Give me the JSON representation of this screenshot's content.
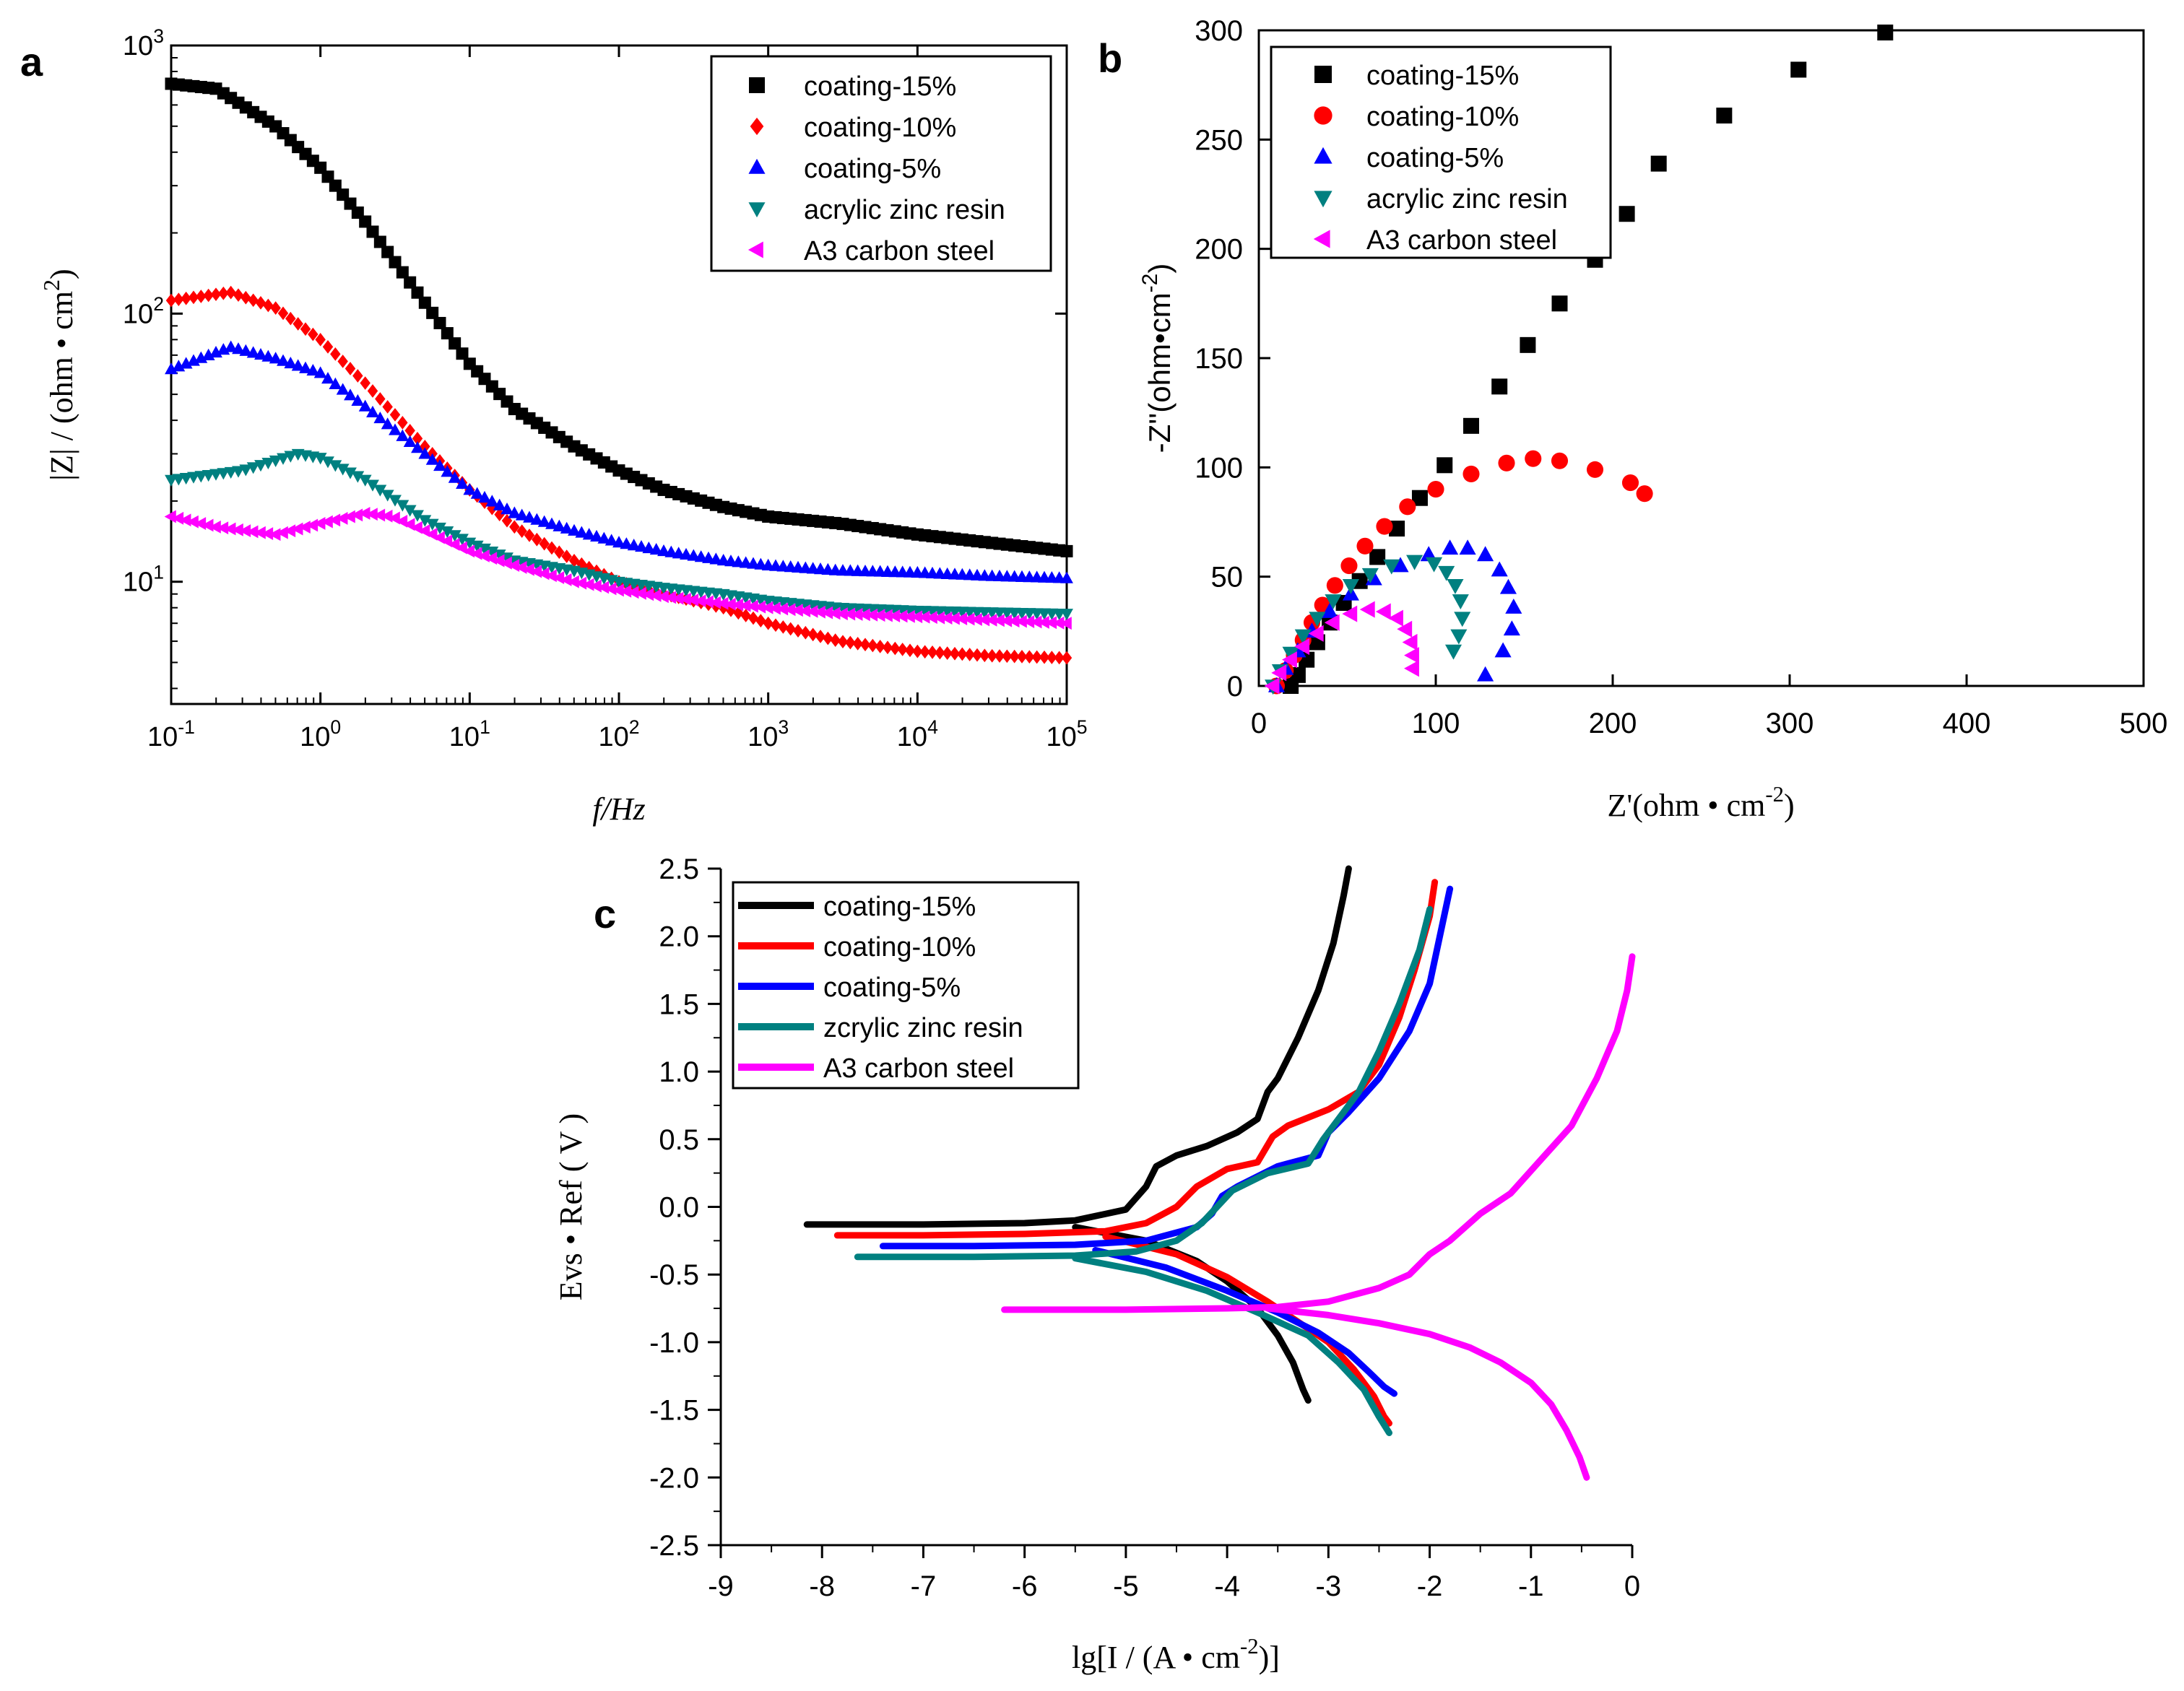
{
  "panels": {
    "a": {
      "label": "a"
    },
    "b": {
      "label": "b"
    },
    "c": {
      "label": "c"
    }
  },
  "chart_data": [
    {
      "id": "a",
      "type": "scatter",
      "title": "",
      "xlabel": "f/Hz",
      "ylabel": "|Z| / (ohm • cm^2)",
      "x_scale": "log",
      "y_scale": "log",
      "xlim": [
        0.1,
        100000
      ],
      "ylim": [
        3.5,
        1000
      ],
      "x_ticks": [
        0.1,
        1,
        10,
        100,
        1000,
        10000,
        100000
      ],
      "x_tick_labels": [
        "10^-1",
        "10^0",
        "10^1",
        "10^2",
        "10^3",
        "10^4",
        "10^5"
      ],
      "y_ticks": [
        10,
        100,
        1000
      ],
      "y_tick_labels": [
        "10^1",
        "10^2",
        "10^3"
      ],
      "grid": false,
      "legend_position": "top-right",
      "series": [
        {
          "name": "coating-15%",
          "marker": "square",
          "color": "#000000",
          "x": [
            0.1,
            0.2,
            0.5,
            1,
            2,
            5,
            10,
            20,
            50,
            100,
            200,
            500,
            1000,
            3000,
            10000,
            30000,
            100000
          ],
          "y": [
            720,
            690,
            500,
            350,
            220,
            110,
            65,
            44,
            32,
            26,
            22,
            19,
            17.5,
            16.5,
            15,
            14,
            13
          ]
        },
        {
          "name": "coating-10%",
          "marker": "diamond",
          "color": "#ff0000",
          "x": [
            0.1,
            0.25,
            0.5,
            1,
            2,
            5,
            10,
            20,
            50,
            100,
            200,
            500,
            1000,
            3000,
            10000,
            30000,
            100000
          ],
          "y": [
            112,
            120,
            105,
            80,
            55,
            32,
            22,
            16,
            12,
            10,
            9,
            8,
            7,
            6,
            5.5,
            5.3,
            5.2
          ]
        },
        {
          "name": "coating-5%",
          "marker": "triangle-up",
          "color": "#0000ff",
          "x": [
            0.1,
            0.25,
            0.5,
            1,
            2,
            5,
            10,
            20,
            50,
            100,
            200,
            500,
            1000,
            3000,
            10000,
            30000,
            100000
          ],
          "y": [
            62,
            75,
            68,
            60,
            45,
            30,
            22,
            18,
            15.5,
            14,
            13,
            12,
            11.5,
            11,
            10.8,
            10.5,
            10.3
          ]
        },
        {
          "name": "acrylic zinc resin",
          "marker": "triangle-down",
          "color": "#008080",
          "x": [
            0.1,
            0.3,
            0.7,
            1,
            2,
            5,
            10,
            20,
            50,
            100,
            200,
            500,
            1000,
            3000,
            10000,
            30000,
            100000
          ],
          "y": [
            24,
            26,
            30,
            29,
            24,
            17,
            14,
            12,
            11,
            10,
            9.5,
            9,
            8.5,
            8,
            7.8,
            7.7,
            7.6
          ]
        },
        {
          "name": "A3 carbon steel",
          "marker": "triangle-left",
          "color": "#ff00ff",
          "x": [
            0.1,
            0.2,
            0.5,
            1,
            2,
            3,
            5,
            10,
            20,
            50,
            100,
            200,
            500,
            1000,
            3000,
            10000,
            30000,
            100000
          ],
          "y": [
            17.5,
            16,
            15,
            16.5,
            18,
            17.5,
            15.5,
            13,
            11.5,
            10,
            9.3,
            8.8,
            8.3,
            8,
            7.6,
            7.4,
            7.2,
            7
          ]
        }
      ]
    },
    {
      "id": "b",
      "type": "scatter",
      "title": "",
      "xlabel": "Z'(ohm • cm^-2)",
      "ylabel": "-Z''(ohm•cm^-2)",
      "xlim": [
        0,
        500
      ],
      "ylim": [
        0,
        300
      ],
      "x_ticks": [
        0,
        100,
        200,
        300,
        400,
        500
      ],
      "y_ticks": [
        0,
        50,
        100,
        150,
        200,
        250,
        300
      ],
      "grid": false,
      "legend_position": "top-left",
      "series": [
        {
          "name": "coating-15%",
          "marker": "square",
          "color": "#000000",
          "x": [
            18,
            22,
            27,
            33,
            40,
            48,
            57,
            67,
            78,
            91,
            105,
            120,
            136,
            152,
            170,
            190,
            208,
            226,
            263,
            305,
            354
          ],
          "y": [
            0,
            5,
            12,
            20,
            29,
            38,
            48,
            59,
            72,
            86,
            101,
            119,
            137,
            156,
            175,
            195,
            216,
            239,
            261,
            282,
            299
          ]
        },
        {
          "name": "coating-10%",
          "marker": "circle",
          "color": "#ff0000",
          "x": [
            10,
            15,
            20,
            25,
            30,
            36,
            43,
            51,
            60,
            71,
            84,
            100,
            120,
            140,
            155,
            170,
            190,
            210,
            218
          ],
          "y": [
            0,
            7,
            14,
            21,
            29,
            37,
            46,
            55,
            64,
            73,
            82,
            90,
            97,
            102,
            104,
            103,
            99,
            93,
            88
          ]
        },
        {
          "name": "coating-5%",
          "marker": "triangle-up",
          "color": "#0000ff",
          "x": [
            10,
            15,
            22,
            30,
            40,
            52,
            65,
            80,
            96,
            108,
            118,
            128,
            136,
            141,
            144,
            143,
            138,
            128
          ],
          "y": [
            0,
            8,
            16,
            25,
            34,
            42,
            49,
            55,
            60,
            63,
            63,
            60,
            53,
            45,
            36,
            26,
            16,
            5
          ]
        },
        {
          "name": "acrylic zinc resin",
          "marker": "triangle-down",
          "color": "#008080",
          "x": [
            8,
            12,
            18,
            25,
            33,
            42,
            52,
            63,
            75,
            88,
            99,
            106,
            111,
            114,
            115,
            113,
            110
          ],
          "y": [
            0,
            7,
            15,
            23,
            31,
            39,
            46,
            51,
            55,
            57,
            56,
            52,
            46,
            39,
            31,
            23,
            16
          ]
        },
        {
          "name": "A3 carbon steel",
          "marker": "triangle-left",
          "color": "#ff00ff",
          "x": [
            8,
            12,
            18,
            25,
            33,
            42,
            52,
            62,
            71,
            78,
            83,
            86,
            87,
            87
          ],
          "y": [
            0,
            6,
            12,
            18,
            24,
            29,
            33,
            35,
            34,
            31,
            26,
            20,
            14,
            8
          ]
        }
      ]
    },
    {
      "id": "c",
      "type": "line",
      "title": "",
      "xlabel": "lg[I / (A • cm^-2)]",
      "ylabel": "Evs • Ref ( V )",
      "xlim": [
        -9,
        0
      ],
      "ylim": [
        -2.5,
        2.5
      ],
      "x_ticks": [
        -9,
        -8,
        -7,
        -6,
        -5,
        -4,
        -3,
        -2,
        -1,
        0
      ],
      "y_ticks": [
        -2.5,
        -2.0,
        -1.5,
        -1.0,
        -0.5,
        0.0,
        0.5,
        1.0,
        1.5,
        2.0,
        2.5
      ],
      "y_tick_labels": [
        "-2.5",
        "-2.0",
        "-1.5",
        "-1.0",
        "-0.5",
        "0.0",
        "0.5",
        "1.0",
        "1.5",
        "2.0",
        "2.5"
      ],
      "grid": false,
      "legend_position": "top-left",
      "series": [
        {
          "name": "coating-15%",
          "color": "#000000",
          "x": [
            -8.15,
            -7.0,
            -6.0,
            -5.5,
            -5.0,
            -4.8,
            -4.7,
            -4.5,
            -4.2,
            -3.9,
            -3.7,
            -3.6,
            -3.5,
            -3.3,
            -3.1,
            -2.95,
            -2.85,
            -2.8
          ],
          "y": [
            -0.13,
            -0.13,
            -0.12,
            -0.1,
            -0.02,
            0.15,
            0.3,
            0.38,
            0.45,
            0.55,
            0.65,
            0.85,
            0.95,
            1.25,
            1.6,
            1.95,
            2.3,
            2.5
          ],
          "cathodic_x": [
            -5.5,
            -4.8,
            -4.3,
            -4.0,
            -3.7,
            -3.5,
            -3.35,
            -3.25,
            -3.2
          ],
          "cathodic_y": [
            -0.15,
            -0.25,
            -0.4,
            -0.55,
            -0.75,
            -0.95,
            -1.15,
            -1.35,
            -1.43
          ]
        },
        {
          "name": "coating-10%",
          "color": "#ff0000",
          "x": [
            -7.85,
            -7.0,
            -6.0,
            -5.2,
            -4.8,
            -4.5,
            -4.3,
            -4.0,
            -3.7,
            -3.55,
            -3.4,
            -3.0,
            -2.7,
            -2.5,
            -2.3,
            -2.15,
            -2.0,
            -1.95
          ],
          "y": [
            -0.21,
            -0.21,
            -0.2,
            -0.18,
            -0.12,
            0.0,
            0.15,
            0.28,
            0.33,
            0.52,
            0.6,
            0.72,
            0.85,
            1.05,
            1.4,
            1.75,
            2.15,
            2.4
          ],
          "cathodic_x": [
            -5.2,
            -4.5,
            -4.0,
            -3.6,
            -3.3,
            -3.0,
            -2.75,
            -2.55,
            -2.45,
            -2.4
          ],
          "cathodic_y": [
            -0.22,
            -0.35,
            -0.52,
            -0.7,
            -0.85,
            -1.0,
            -1.2,
            -1.4,
            -1.55,
            -1.6
          ]
        },
        {
          "name": "coating-5%",
          "color": "#0000ff",
          "x": [
            -7.4,
            -6.5,
            -5.5,
            -4.8,
            -4.3,
            -4.15,
            -4.05,
            -3.9,
            -3.5,
            -3.1,
            -3.0,
            -2.8,
            -2.5,
            -2.2,
            -2.0,
            -1.9,
            -1.8
          ],
          "y": [
            -0.29,
            -0.29,
            -0.28,
            -0.25,
            -0.15,
            -0.05,
            0.08,
            0.15,
            0.3,
            0.38,
            0.55,
            0.7,
            0.95,
            1.3,
            1.65,
            2.0,
            2.35
          ],
          "cathodic_x": [
            -5.3,
            -4.6,
            -4.0,
            -3.5,
            -3.1,
            -2.8,
            -2.6,
            -2.45,
            -2.35
          ],
          "cathodic_y": [
            -0.32,
            -0.45,
            -0.62,
            -0.78,
            -0.93,
            -1.08,
            -1.22,
            -1.33,
            -1.38
          ]
        },
        {
          "name": " zcrylic zinc resin",
          "color": "#008080",
          "x": [
            -7.65,
            -6.5,
            -5.5,
            -4.9,
            -4.5,
            -4.25,
            -4.1,
            -3.95,
            -3.6,
            -3.2,
            -3.05,
            -2.9,
            -2.7,
            -2.5,
            -2.3,
            -2.1,
            -2.0
          ],
          "y": [
            -0.37,
            -0.37,
            -0.36,
            -0.33,
            -0.25,
            -0.12,
            0.0,
            0.12,
            0.25,
            0.32,
            0.5,
            0.65,
            0.85,
            1.15,
            1.5,
            1.9,
            2.2
          ],
          "cathodic_x": [
            -5.5,
            -4.8,
            -4.2,
            -3.7,
            -3.2,
            -2.9,
            -2.65,
            -2.5,
            -2.4
          ],
          "cathodic_y": [
            -0.38,
            -0.48,
            -0.62,
            -0.78,
            -0.95,
            -1.15,
            -1.35,
            -1.55,
            -1.67
          ]
        },
        {
          "name": "A3 carbon steel",
          "color": "#ff00ff",
          "x": [
            -6.2,
            -5.0,
            -4.0,
            -3.5,
            -3.0,
            -2.5,
            -2.2,
            -2.0,
            -1.8,
            -1.5,
            -1.2,
            -0.9,
            -0.6,
            -0.35,
            -0.15,
            -0.05,
            0.0
          ],
          "y": [
            -0.76,
            -0.76,
            -0.75,
            -0.74,
            -0.7,
            -0.6,
            -0.5,
            -0.35,
            -0.25,
            -0.05,
            0.1,
            0.35,
            0.6,
            0.95,
            1.3,
            1.6,
            1.85
          ],
          "cathodic_x": [
            -3.6,
            -3.0,
            -2.5,
            -2.0,
            -1.6,
            -1.3,
            -1.0,
            -0.8,
            -0.65,
            -0.52,
            -0.45
          ],
          "cathodic_y": [
            -0.75,
            -0.8,
            -0.86,
            -0.94,
            -1.04,
            -1.15,
            -1.3,
            -1.46,
            -1.65,
            -1.85,
            -2.0
          ]
        }
      ]
    }
  ]
}
